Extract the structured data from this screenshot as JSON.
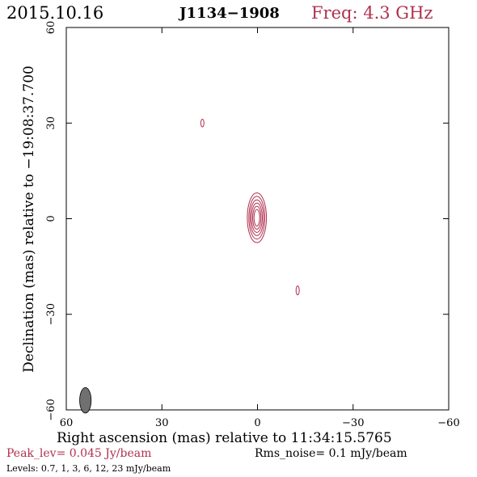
{
  "header": {
    "date": "2015.10.16",
    "source": "J1134−1908",
    "frequency": "Freq: 4.3 GHz"
  },
  "footer": {
    "xlabel": "Right ascension (mas) relative to 11:34:15.5765",
    "peak": "Peak_lev=  0.045 Jy/beam",
    "rms": "Rms_noise=  0.1 mJy/beam",
    "levels": "Levels: 0.7,    1,    3,    6,   12,   23 mJy/beam"
  },
  "colors": {
    "contour": "#b0304f",
    "beam": "#707070",
    "text": "#000000"
  },
  "chart_data": {
    "type": "contour",
    "ylabel": "Declination (mas) relative to −19:08:37.700",
    "xlim": [
      60,
      -60
    ],
    "ylim": [
      -60,
      60
    ],
    "xticks": [
      60,
      30,
      0,
      -30,
      -60
    ],
    "yticks": [
      60,
      30,
      0,
      -30,
      -60
    ],
    "xtick_labels": [
      "60",
      "30",
      "0",
      "−30",
      "−60"
    ],
    "ytick_labels": [
      "60",
      "30",
      "0",
      "−30",
      "−60"
    ],
    "contour_levels_mJy": [
      0.7,
      1,
      3,
      6,
      12,
      23
    ],
    "components": [
      {
        "x": 0.2,
        "y": 0.3,
        "rx": [
          0.9,
          1.3,
          1.7,
          2.1,
          2.5,
          3.0
        ],
        "ry": [
          2.6,
          3.6,
          4.6,
          5.6,
          6.7,
          7.8
        ]
      },
      {
        "x": 17.3,
        "y": 30.0,
        "rx": [
          0.5
        ],
        "ry": [
          1.2
        ]
      },
      {
        "x": -12.6,
        "y": -22.5,
        "rx": [
          0.5
        ],
        "ry": [
          1.4
        ]
      }
    ],
    "beam": {
      "x": 54,
      "y": -57,
      "major": 4.0,
      "minor": 1.8,
      "pa": 0
    }
  }
}
